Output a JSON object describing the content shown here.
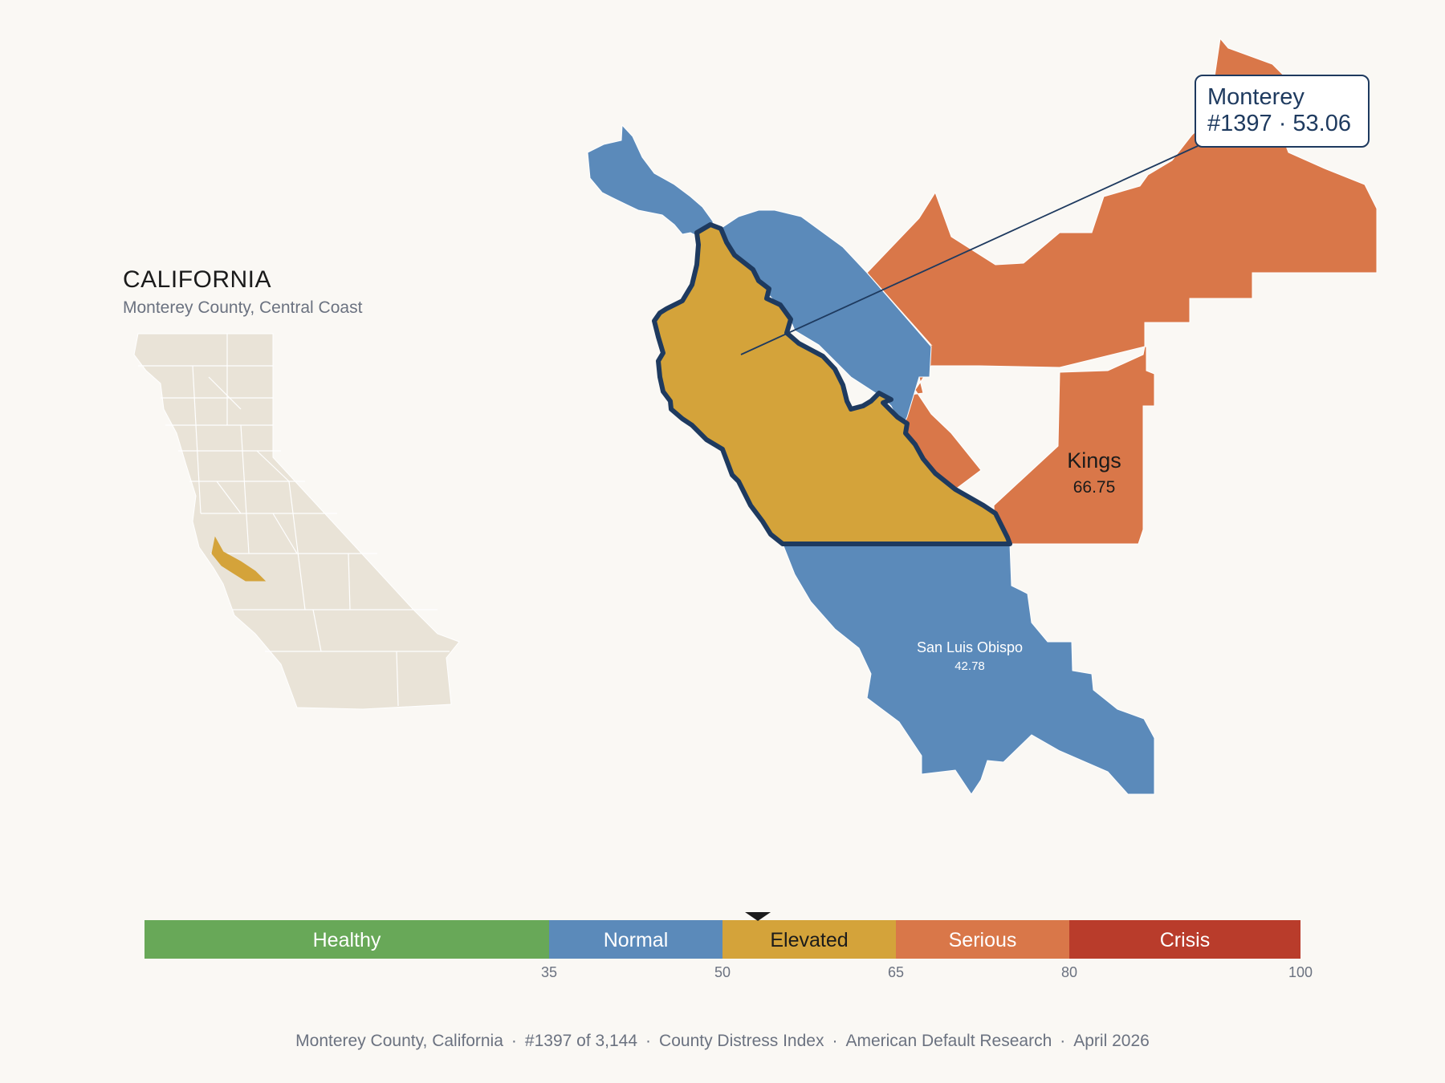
{
  "inset": {
    "title": "CALIFORNIA",
    "subtitle": "Monterey County, Central Coast"
  },
  "counties": {
    "monterey": {
      "name": "Monterey",
      "rank": "#1397",
      "score": "53.06",
      "category": "Elevated",
      "color": "#d4a33a"
    },
    "kings": {
      "name": "Kings",
      "score": "66.75",
      "category": "Serious",
      "color": "#d97749"
    },
    "san_luis_obispo": {
      "name": "San Luis Obispo",
      "score": "42.78",
      "category": "Normal",
      "color": "#5b8aba"
    },
    "santa_cruz": {
      "category": "Normal",
      "color": "#5b8aba"
    },
    "san_benito": {
      "category": "Normal",
      "color": "#5b8aba"
    },
    "fresno": {
      "category": "Serious",
      "color": "#d97749"
    }
  },
  "callout": {
    "line1": "Monterey",
    "line2": "#1397 · 53.06"
  },
  "legend": {
    "marker_value": 53.06,
    "segments": [
      {
        "label": "Healthy",
        "from": 0,
        "to": 35,
        "color": "#68a858"
      },
      {
        "label": "Normal",
        "from": 35,
        "to": 50,
        "color": "#5b8aba"
      },
      {
        "label": "Elevated",
        "from": 50,
        "to": 65,
        "color": "#d4a33a"
      },
      {
        "label": "Serious",
        "from": 65,
        "to": 80,
        "color": "#d97749"
      },
      {
        "label": "Crisis",
        "from": 80,
        "to": 100,
        "color": "#b93c2b"
      }
    ],
    "ticks": [
      "35",
      "50",
      "65",
      "80",
      "100"
    ]
  },
  "footer": {
    "county": "Monterey County, California",
    "rank": "#1397 of 3,144",
    "index": "County Distress Index",
    "source": "American Default Research",
    "date": "April 2026",
    "separator": "·"
  },
  "colors": {
    "background": "#faf8f4",
    "inset_land": "#e9e3d7",
    "highlight_outline": "#1e3a5f"
  }
}
